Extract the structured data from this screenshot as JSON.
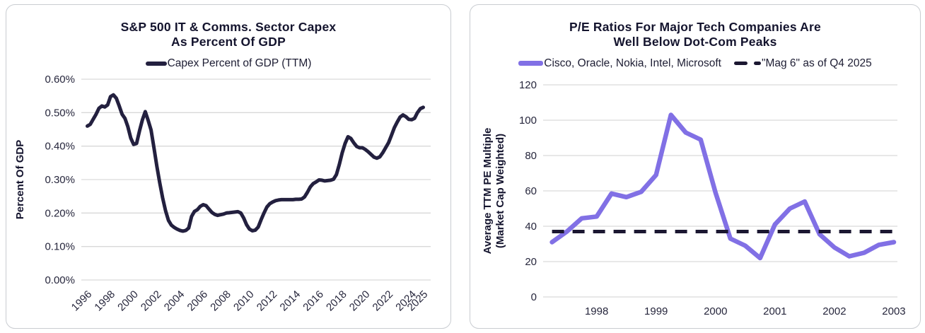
{
  "page": {
    "background": "#ffffff",
    "card_border": "#c9ccd1"
  },
  "chart_data": [
    {
      "type": "line",
      "title": "S&P 500 IT & Comms. Sector Capex As Percent Of GDP",
      "title_lines": [
        "S&P 500 IT & Comms. Sector Capex",
        "As Percent Of GDP"
      ],
      "ylabel": "Percent Of GDP",
      "ylabel_lines": [
        "Percent Of GDP"
      ],
      "xlabel": "",
      "grid": true,
      "grid_color": "#d9d9d9",
      "legend_position": "top",
      "ylim": [
        0,
        0.6
      ],
      "xlim": [
        1995.48,
        2025.64
      ],
      "y_ticks": [
        0,
        0.1,
        0.2,
        0.3,
        0.4,
        0.5,
        0.6
      ],
      "y_tick_labels": [
        "0.00%",
        "0.10%",
        "0.20%",
        "0.30%",
        "0.40%",
        "0.50%",
        "0.60%"
      ],
      "x_ticks": [
        1996,
        1998,
        2000,
        2002,
        2004,
        2006,
        2008,
        2010,
        2012,
        2014,
        2016,
        2018,
        2020,
        2022,
        2024,
        2025
      ],
      "x_tick_labels": [
        "1996",
        "1998",
        "2000",
        "2002",
        "2004",
        "2006",
        "2008",
        "2010",
        "2012",
        "2014",
        "2016",
        "2018",
        "2020",
        "2022",
        "2024",
        "2025"
      ],
      "series": [
        {
          "name": "Capex Percent of GDP (TTM)",
          "color": "#23203f",
          "width": 5,
          "unit": "percent of GDP",
          "x_start": 1996.0,
          "x_step": 0.25,
          "values": [
            0.46,
            0.465,
            0.48,
            0.495,
            0.513,
            0.52,
            0.517,
            0.523,
            0.548,
            0.553,
            0.543,
            0.52,
            0.495,
            0.483,
            0.458,
            0.424,
            0.405,
            0.408,
            0.445,
            0.478,
            0.503,
            0.477,
            0.448,
            0.395,
            0.34,
            0.29,
            0.245,
            0.207,
            0.178,
            0.164,
            0.157,
            0.152,
            0.148,
            0.146,
            0.148,
            0.155,
            0.19,
            0.205,
            0.21,
            0.22,
            0.225,
            0.222,
            0.212,
            0.202,
            0.196,
            0.193,
            0.195,
            0.197,
            0.2,
            0.201,
            0.202,
            0.203,
            0.204,
            0.2,
            0.185,
            0.165,
            0.152,
            0.147,
            0.149,
            0.158,
            0.18,
            0.2,
            0.218,
            0.228,
            0.233,
            0.237,
            0.239,
            0.24,
            0.24,
            0.24,
            0.24,
            0.24,
            0.241,
            0.241,
            0.242,
            0.248,
            0.262,
            0.278,
            0.288,
            0.293,
            0.299,
            0.298,
            0.296,
            0.297,
            0.298,
            0.301,
            0.315,
            0.345,
            0.38,
            0.408,
            0.428,
            0.423,
            0.41,
            0.399,
            0.395,
            0.395,
            0.39,
            0.383,
            0.375,
            0.367,
            0.364,
            0.368,
            0.38,
            0.395,
            0.41,
            0.432,
            0.455,
            0.472,
            0.487,
            0.493,
            0.488,
            0.48,
            0.479,
            0.483,
            0.5,
            0.512,
            0.516
          ]
        }
      ]
    },
    {
      "type": "line",
      "title": "P/E Ratios For Major Tech Companies Are Well Below Dot-Com Peaks",
      "title_lines": [
        "P/E Ratios For Major Tech Companies Are",
        "Well Below Dot-Com Peaks"
      ],
      "ylabel": "Average TTM PE Multiple (Market Cap Weighted)",
      "ylabel_lines": [
        "Average TTM PE Multiple",
        "(Market Cap Weighted)"
      ],
      "xlabel": "",
      "grid": true,
      "grid_color": "#d9d9d9",
      "legend_position": "top",
      "ylim": [
        0,
        120
      ],
      "xlim": [
        1997.1,
        2003.06
      ],
      "y_ticks": [
        0,
        20,
        40,
        60,
        80,
        100,
        120
      ],
      "y_tick_labels": [
        "0",
        "20",
        "40",
        "60",
        "80",
        "100",
        "120"
      ],
      "x_ticks": [
        1998,
        1999,
        2000,
        2001,
        2002,
        2003
      ],
      "x_tick_labels": [
        "1998",
        "1999",
        "2000",
        "2001",
        "2002",
        "2003"
      ],
      "series": [
        {
          "name": "Cisco, Oracle, Nokia, Intel, Microsoft",
          "color": "#8170e5",
          "width": 6.5,
          "x_start": 1997.25,
          "x_step": 0.25,
          "values": [
            31,
            37,
            44.5,
            45.5,
            58.5,
            56.5,
            59.5,
            69,
            103,
            93,
            89,
            59,
            33,
            29,
            22,
            41,
            50,
            54,
            35.5,
            28,
            23,
            25,
            29.5,
            31
          ]
        },
        {
          "name": "\"Mag 6\" as of Q4 2025",
          "color": "#1b1731",
          "width": 5,
          "style": "dashed",
          "const_value": 37,
          "x_from": 1997.25,
          "x_to": 2003.0
        }
      ]
    }
  ]
}
